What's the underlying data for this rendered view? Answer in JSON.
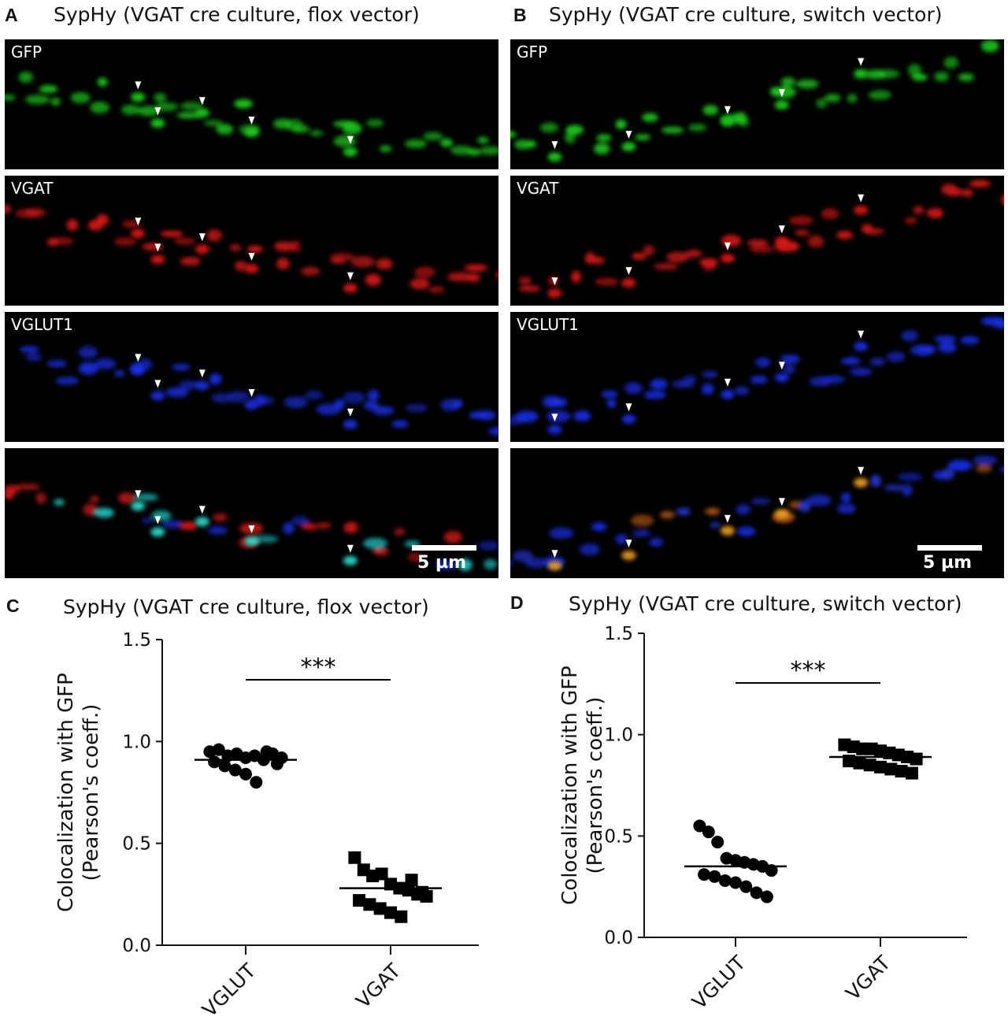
{
  "panels": {
    "A": {
      "letter": "A",
      "title": "SypHy (VGAT cre culture, flox vector)"
    },
    "B": {
      "letter": "B",
      "title": "SypHy (VGAT cre culture, switch vector)"
    },
    "C": {
      "letter": "C",
      "title": "SypHy (VGAT cre culture, flox vector)"
    },
    "D": {
      "letter": "D",
      "title": "SypHy (VGAT cre culture, switch vector)"
    }
  },
  "micrographs": {
    "channel_labels": [
      "GFP",
      "VGAT",
      "VGLUT1",
      ""
    ],
    "channel_colors": [
      "#1fd11f",
      "#e01818",
      "#1a2fe6",
      "merge"
    ],
    "scale_bar_label": "5 µm",
    "A_bright": [
      [
        0.27,
        0.36
      ],
      [
        0.4,
        0.48
      ],
      [
        0.31,
        0.56
      ],
      [
        0.5,
        0.63
      ],
      [
        0.7,
        0.78
      ]
    ],
    "B_bright": [
      [
        0.09,
        0.82
      ],
      [
        0.24,
        0.74
      ],
      [
        0.44,
        0.55
      ],
      [
        0.55,
        0.42
      ],
      [
        0.71,
        0.18
      ]
    ]
  },
  "chart_data": [
    {
      "type": "scatter",
      "panel": "C",
      "title": "SypHy (VGAT cre culture, flox vector)",
      "ylabel": "Colocalization with GFP\n(Pearson's coeff.)",
      "categories": [
        "VGLUT",
        "VGAT"
      ],
      "yticks": [
        "0.0",
        "0.5",
        "1.0",
        "1.5"
      ],
      "ylim": [
        0,
        1.5
      ],
      "significance": "***",
      "series": [
        {
          "category": "VGLUT",
          "marker": "circle",
          "mean": 0.91,
          "points": [
            0.95,
            0.96,
            0.93,
            0.94,
            0.92,
            0.93,
            0.91,
            0.94,
            0.92,
            0.9,
            0.88,
            0.86,
            0.84,
            0.8,
            0.95,
            0.89
          ]
        },
        {
          "category": "VGAT",
          "marker": "square",
          "mean": 0.28,
          "points": [
            0.43,
            0.37,
            0.34,
            0.35,
            0.3,
            0.28,
            0.27,
            0.25,
            0.24,
            0.22,
            0.2,
            0.18,
            0.16,
            0.14,
            0.32,
            0.26
          ]
        }
      ]
    },
    {
      "type": "scatter",
      "panel": "D",
      "title": "SypHy (VGAT cre culture, switch vector)",
      "ylabel": "Colocalization with GFP\n(Pearson's coeff.)",
      "categories": [
        "VGLUT",
        "VGAT"
      ],
      "yticks": [
        "0.0",
        "0.5",
        "1.0",
        "1.5"
      ],
      "ylim": [
        0,
        1.5
      ],
      "significance": "***",
      "series": [
        {
          "category": "VGLUT",
          "marker": "circle",
          "mean": 0.35,
          "points": [
            0.55,
            0.52,
            0.47,
            0.39,
            0.38,
            0.37,
            0.36,
            0.35,
            0.33,
            0.31,
            0.3,
            0.28,
            0.27,
            0.25,
            0.22,
            0.2
          ]
        },
        {
          "category": "VGAT",
          "marker": "square",
          "mean": 0.89,
          "points": [
            0.95,
            0.94,
            0.93,
            0.93,
            0.92,
            0.91,
            0.9,
            0.89,
            0.88,
            0.87,
            0.86,
            0.85,
            0.84,
            0.83,
            0.82,
            0.81
          ]
        }
      ]
    }
  ]
}
